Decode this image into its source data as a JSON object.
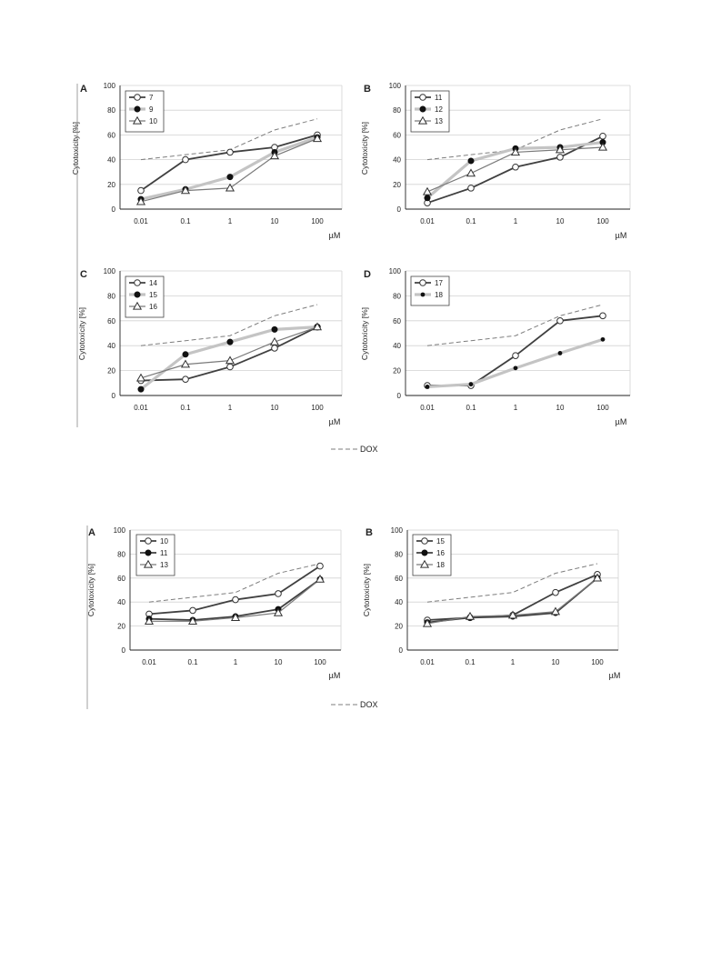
{
  "colors": {
    "dark": "#404040",
    "light": "#c4c4c4",
    "medium": "#7a7a7a",
    "grid": "#d2d2d2",
    "dox": "#7d7d7d"
  },
  "figures": [
    {
      "legend_dox": "DOX"
    },
    {
      "legend_dox": "DOX"
    }
  ],
  "chart_data": [
    {
      "panel": "A",
      "figure": 1,
      "type": "line",
      "categories": [
        "0.01",
        "0.1",
        "1",
        "10",
        "100"
      ],
      "xlabel": "µM",
      "ylabel": "Cytotoxicity [%]",
      "ylim": [
        0,
        100
      ],
      "yticks": [
        "0",
        "20",
        "40",
        "60",
        "80",
        "100"
      ],
      "grid": true,
      "legend_position": "top-left",
      "series": [
        {
          "name": "7",
          "values": [
            15,
            40,
            46,
            50,
            60
          ],
          "marker": "open-circle",
          "line": "dark"
        },
        {
          "name": "9",
          "values": [
            8,
            16,
            26,
            46,
            58
          ],
          "marker": "filled-circle",
          "line": "light"
        },
        {
          "name": "10",
          "values": [
            6,
            15,
            17,
            43,
            57
          ],
          "marker": "open-triangle",
          "line": "medium"
        },
        {
          "name": "DOX",
          "values": [
            40,
            44,
            48,
            64,
            73
          ],
          "marker": "none",
          "line": "dashed"
        }
      ]
    },
    {
      "panel": "B",
      "figure": 1,
      "type": "line",
      "categories": [
        "0.01",
        "0.1",
        "1",
        "10",
        "100"
      ],
      "xlabel": "µM",
      "ylabel": "Cytotoxicity [%]",
      "ylim": [
        0,
        100
      ],
      "yticks": [
        "0",
        "20",
        "40",
        "60",
        "80",
        "100"
      ],
      "grid": true,
      "legend_position": "top-left",
      "series": [
        {
          "name": "11",
          "values": [
            5,
            17,
            34,
            42,
            59
          ],
          "marker": "open-circle",
          "line": "dark"
        },
        {
          "name": "12",
          "values": [
            9,
            39,
            49,
            50,
            54
          ],
          "marker": "filled-circle",
          "line": "light"
        },
        {
          "name": "13",
          "values": [
            14,
            29,
            46,
            48,
            50
          ],
          "marker": "open-triangle",
          "line": "medium"
        },
        {
          "name": "DOX",
          "values": [
            40,
            44,
            48,
            64,
            73
          ],
          "marker": "none",
          "line": "dashed"
        }
      ]
    },
    {
      "panel": "C",
      "figure": 1,
      "type": "line",
      "categories": [
        "0.01",
        "0.1",
        "1",
        "10",
        "100"
      ],
      "xlabel": "µM",
      "ylabel": "Cytotoxicity [%]",
      "ylim": [
        0,
        100
      ],
      "yticks": [
        "0",
        "20",
        "40",
        "60",
        "80",
        "100"
      ],
      "grid": true,
      "legend_position": "top-left",
      "series": [
        {
          "name": "14",
          "values": [
            12,
            13,
            23,
            38,
            55
          ],
          "marker": "open-circle",
          "line": "dark"
        },
        {
          "name": "15",
          "values": [
            5,
            33,
            43,
            53,
            55
          ],
          "marker": "filled-circle",
          "line": "light"
        },
        {
          "name": "16",
          "values": [
            14,
            25,
            28,
            43,
            55
          ],
          "marker": "open-triangle",
          "line": "medium"
        },
        {
          "name": "DOX",
          "values": [
            40,
            44,
            48,
            64,
            73
          ],
          "marker": "none",
          "line": "dashed"
        }
      ]
    },
    {
      "panel": "D",
      "figure": 1,
      "type": "line",
      "categories": [
        "0.01",
        "0.1",
        "1",
        "10",
        "100"
      ],
      "xlabel": "µM",
      "ylabel": "Cytotoxicity [%]",
      "ylim": [
        0,
        100
      ],
      "yticks": [
        "0",
        "20",
        "40",
        "60",
        "80",
        "100"
      ],
      "grid": true,
      "legend_position": "top-left",
      "series": [
        {
          "name": "17",
          "values": [
            8,
            8,
            32,
            60,
            64
          ],
          "marker": "open-circle",
          "line": "dark"
        },
        {
          "name": "18",
          "values": [
            7,
            9,
            22,
            34,
            45
          ],
          "marker": "small-filled-circle",
          "line": "light"
        },
        {
          "name": "DOX",
          "values": [
            40,
            44,
            48,
            64,
            73
          ],
          "marker": "none",
          "line": "dashed"
        }
      ]
    },
    {
      "panel": "A",
      "figure": 2,
      "type": "line",
      "categories": [
        "0.01",
        "0.1",
        "1",
        "10",
        "100"
      ],
      "xlabel": "µM",
      "ylabel": "Cytotoxicity [%]",
      "ylim": [
        0,
        100
      ],
      "yticks": [
        "0",
        "20",
        "40",
        "60",
        "80",
        "100"
      ],
      "grid": true,
      "legend_position": "top-left",
      "series": [
        {
          "name": "10",
          "values": [
            30,
            33,
            42,
            47,
            70
          ],
          "marker": "open-circle",
          "line": "dark"
        },
        {
          "name": "11",
          "values": [
            26,
            25,
            28,
            34,
            59
          ],
          "marker": "filled-circle",
          "line": "dark"
        },
        {
          "name": "13",
          "values": [
            24,
            24,
            27,
            31,
            59
          ],
          "marker": "open-triangle",
          "line": "medium"
        },
        {
          "name": "DOX",
          "values": [
            40,
            44,
            48,
            64,
            72
          ],
          "marker": "none",
          "line": "dashed"
        }
      ]
    },
    {
      "panel": "B",
      "figure": 2,
      "type": "line",
      "categories": [
        "0.01",
        "0.1",
        "1",
        "10",
        "100"
      ],
      "xlabel": "µM",
      "ylabel": "Cytotoxicity [%]",
      "ylim": [
        0,
        100
      ],
      "yticks": [
        "0",
        "20",
        "40",
        "60",
        "80",
        "100"
      ],
      "grid": true,
      "legend_position": "top-left",
      "series": [
        {
          "name": "15",
          "values": [
            25,
            27,
            29,
            48,
            63
          ],
          "marker": "open-circle",
          "line": "dark"
        },
        {
          "name": "16",
          "values": [
            23,
            27,
            28,
            31,
            60
          ],
          "marker": "filled-circle",
          "line": "dark"
        },
        {
          "name": "18",
          "values": [
            22,
            28,
            29,
            32,
            60
          ],
          "marker": "open-triangle",
          "line": "medium"
        },
        {
          "name": "DOX",
          "values": [
            40,
            44,
            48,
            64,
            72
          ],
          "marker": "none",
          "line": "dashed"
        }
      ]
    }
  ]
}
